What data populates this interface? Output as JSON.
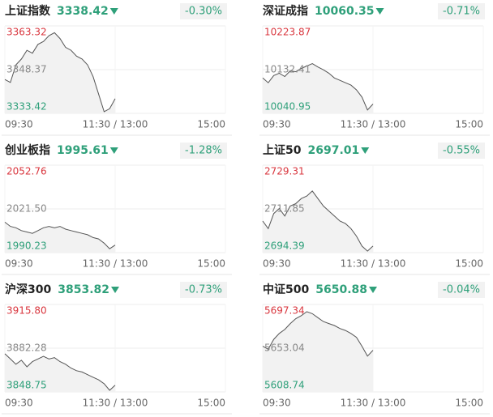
{
  "chart_data": [
    {
      "type": "line",
      "title": "上证指数",
      "price": "3338.42",
      "change": "-0.30%",
      "xlim": [
        0,
        240
      ],
      "xticks": [
        {
          "value": 0,
          "label": "09:30"
        },
        {
          "value": 120,
          "label": "11:30 / 13:00"
        },
        {
          "value": 240,
          "label": "15:00"
        }
      ],
      "ylim": [
        3333.42,
        3363.32
      ],
      "yticks": [
        3363.32,
        3348.37,
        3333.42
      ],
      "color": "#555555",
      "x": [
        0,
        6,
        12,
        18,
        24,
        30,
        36,
        42,
        48,
        54,
        60,
        66,
        72,
        78,
        84,
        90,
        96,
        102,
        108,
        114,
        120
      ],
      "values": [
        3345,
        3344,
        3350,
        3352,
        3355,
        3354,
        3357,
        3358,
        3360,
        3361,
        3359,
        3356,
        3355,
        3353,
        3352,
        3350,
        3346,
        3340,
        3334,
        3335,
        3338.42
      ]
    },
    {
      "type": "line",
      "title": "深证成指",
      "price": "10060.35",
      "change": "-0.71%",
      "xlim": [
        0,
        240
      ],
      "xticks": [
        {
          "value": 0,
          "label": "09:30"
        },
        {
          "value": 120,
          "label": "11:30 / 13:00"
        },
        {
          "value": 240,
          "label": "15:00"
        }
      ],
      "ylim": [
        10040.95,
        10223.87
      ],
      "yticks": [
        10223.87,
        10132.41,
        10040.95
      ],
      "color": "#555555",
      "x": [
        0,
        6,
        12,
        18,
        24,
        30,
        36,
        42,
        48,
        54,
        60,
        66,
        72,
        78,
        84,
        90,
        96,
        102,
        108,
        114,
        120
      ],
      "values": [
        10115,
        10105,
        10120,
        10125,
        10118,
        10130,
        10128,
        10135,
        10140,
        10145,
        10138,
        10132,
        10125,
        10115,
        10110,
        10105,
        10100,
        10090,
        10075,
        10048,
        10060.35
      ]
    },
    {
      "type": "line",
      "title": "创业板指",
      "price": "1995.61",
      "change": "-1.28%",
      "xlim": [
        0,
        240
      ],
      "xticks": [
        {
          "value": 0,
          "label": "09:30"
        },
        {
          "value": 120,
          "label": "11:30 / 13:00"
        },
        {
          "value": 240,
          "label": "15:00"
        }
      ],
      "ylim": [
        1990.23,
        2052.76
      ],
      "yticks": [
        2052.76,
        {
          "value": 2021.5,
          "label": "2021.50"
        },
        1990.23
      ],
      "color": "#555555",
      "x": [
        0,
        6,
        12,
        18,
        24,
        30,
        36,
        42,
        48,
        54,
        60,
        66,
        72,
        78,
        84,
        90,
        96,
        102,
        108,
        114,
        120
      ],
      "values": [
        2012,
        2009,
        2008,
        2006,
        2005,
        2004,
        2006,
        2008,
        2009,
        2008,
        2009,
        2007,
        2006,
        2005,
        2004,
        2003,
        2001,
        2000,
        1997,
        1993,
        1995.61
      ]
    },
    {
      "type": "line",
      "title": "上证50",
      "price": "2697.01",
      "change": "-0.55%",
      "xlim": [
        0,
        240
      ],
      "xticks": [
        {
          "value": 0,
          "label": "09:30"
        },
        {
          "value": 120,
          "label": "11:30 / 13:00"
        },
        {
          "value": 240,
          "label": "15:00"
        }
      ],
      "ylim": [
        2694.39,
        2729.31
      ],
      "yticks": [
        2729.31,
        2711.85,
        2694.39
      ],
      "color": "#555555",
      "x": [
        0,
        6,
        12,
        18,
        24,
        30,
        36,
        42,
        48,
        54,
        60,
        66,
        72,
        78,
        84,
        90,
        96,
        102,
        108,
        114,
        120
      ],
      "values": [
        2707,
        2704,
        2710,
        2712,
        2709,
        2713,
        2714,
        2716,
        2717,
        2719,
        2716,
        2713,
        2711,
        2709,
        2707,
        2706,
        2704,
        2701,
        2697,
        2695,
        2697.01
      ]
    },
    {
      "type": "line",
      "title": "沪深300",
      "price": "3853.82",
      "change": "-0.73%",
      "xlim": [
        0,
        240
      ],
      "xticks": [
        {
          "value": 0,
          "label": "09:30"
        },
        {
          "value": 120,
          "label": "11:30 / 13:00"
        },
        {
          "value": 240,
          "label": "15:00"
        }
      ],
      "ylim": [
        3848.75,
        3915.8
      ],
      "yticks": [
        {
          "value": 3915.8,
          "label": "3915.80"
        },
        3882.28,
        3848.75
      ],
      "color": "#555555",
      "x": [
        0,
        6,
        12,
        18,
        24,
        30,
        36,
        42,
        48,
        54,
        60,
        66,
        72,
        78,
        84,
        90,
        96,
        102,
        108,
        114,
        120
      ],
      "values": [
        3878,
        3874,
        3870,
        3873,
        3868,
        3872,
        3874,
        3876,
        3874,
        3875,
        3872,
        3870,
        3867,
        3865,
        3864,
        3862,
        3860,
        3858,
        3855,
        3850,
        3853.82
      ]
    },
    {
      "type": "line",
      "title": "中证500",
      "price": "5650.88",
      "change": "-0.04%",
      "xlim": [
        0,
        240
      ],
      "xticks": [
        {
          "value": 0,
          "label": "09:30"
        },
        {
          "value": 120,
          "label": "11:30 / 13:00"
        },
        {
          "value": 240,
          "label": "15:00"
        }
      ],
      "ylim": [
        5608.74,
        5697.34
      ],
      "yticks": [
        5697.34,
        5653.04,
        5608.74
      ],
      "color": "#555555",
      "x": [
        0,
        6,
        12,
        18,
        24,
        30,
        36,
        42,
        48,
        54,
        60,
        66,
        72,
        78,
        84,
        90,
        96,
        102,
        108,
        114,
        120
      ],
      "values": [
        5655,
        5652,
        5662,
        5668,
        5672,
        5678,
        5683,
        5686,
        5690,
        5688,
        5684,
        5680,
        5678,
        5676,
        5673,
        5671,
        5668,
        5664,
        5655,
        5645,
        5650.88
      ]
    }
  ]
}
